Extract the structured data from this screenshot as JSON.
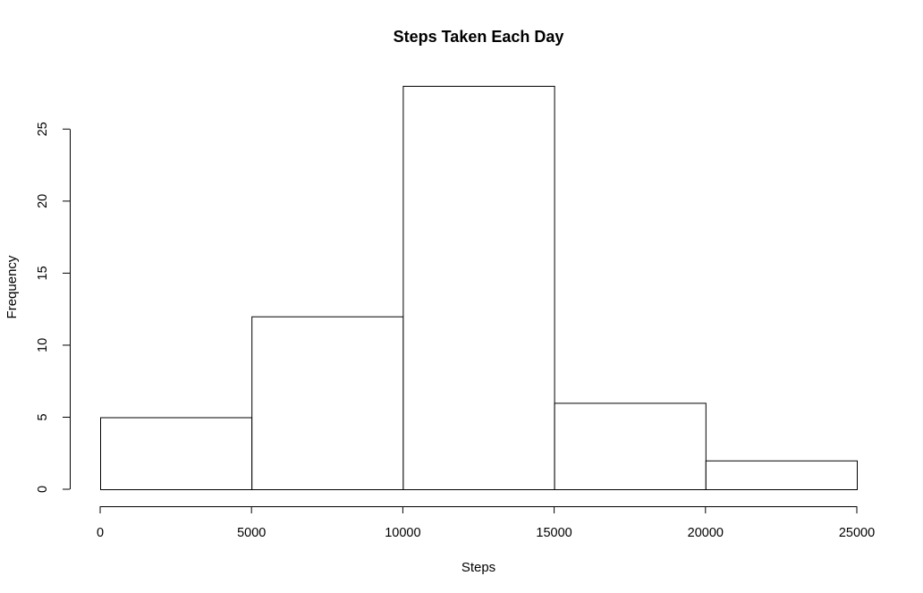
{
  "chart_data": {
    "type": "bar",
    "subtype": "histogram",
    "title": "Steps Taken Each Day",
    "xlabel": "Steps",
    "ylabel": "Frequency",
    "bins": [
      {
        "from": 0,
        "to": 5000,
        "count": 5
      },
      {
        "from": 5000,
        "to": 10000,
        "count": 12
      },
      {
        "from": 10000,
        "to": 15000,
        "count": 28
      },
      {
        "from": 15000,
        "to": 20000,
        "count": 6
      },
      {
        "from": 20000,
        "to": 25000,
        "count": 2
      }
    ],
    "xlim": [
      0,
      25000
    ],
    "ylim": [
      0,
      28
    ],
    "x_ticks": [
      0,
      5000,
      10000,
      15000,
      20000,
      25000
    ],
    "x_tick_labels": [
      "0",
      "5000",
      "10000",
      "15000",
      "20000",
      "25000"
    ],
    "y_ticks": [
      0,
      5,
      10,
      15,
      20,
      25
    ],
    "y_tick_labels": [
      "0",
      "5",
      "10",
      "15",
      "20",
      "25"
    ],
    "grid": false,
    "legend": "none",
    "colors": {
      "bar_fill": "#ffffff",
      "bar_stroke": "#000000"
    }
  }
}
